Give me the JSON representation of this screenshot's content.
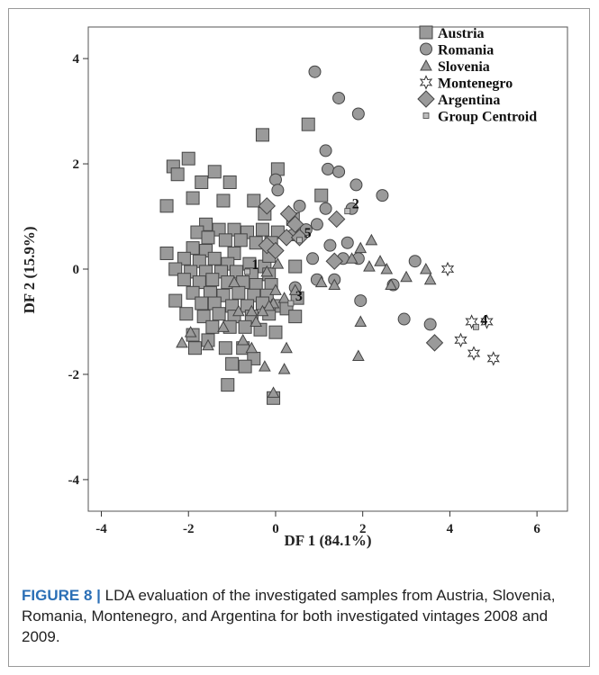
{
  "chart_data": {
    "type": "scatter",
    "title": "",
    "xlabel": "DF 1 (84.1%)",
    "ylabel": "DF 2 (15.9%)",
    "xlim": [
      -4.3,
      6.7
    ],
    "ylim": [
      -4.6,
      4.6
    ],
    "xticks": [
      -4,
      -2,
      0,
      2,
      4,
      6
    ],
    "yticks": [
      -4,
      -2,
      0,
      2,
      4
    ],
    "grid": false,
    "legend_position": "top-right",
    "colors": {
      "fill": "#9a9a9a",
      "stroke": "#444444"
    },
    "series": [
      {
        "name": "Austria",
        "marker": "square",
        "points": [
          [
            -0.3,
            2.55
          ],
          [
            0.05,
            1.9
          ],
          [
            0.75,
            2.75
          ],
          [
            -2.0,
            2.1
          ],
          [
            -2.35,
            1.95
          ],
          [
            -1.4,
            1.85
          ],
          [
            -2.25,
            1.8
          ],
          [
            -1.7,
            1.65
          ],
          [
            -1.05,
            1.65
          ],
          [
            -0.5,
            1.3
          ],
          [
            -1.9,
            1.35
          ],
          [
            -1.2,
            1.3
          ],
          [
            -0.25,
            1.05
          ],
          [
            1.05,
            1.4
          ],
          [
            -2.5,
            1.2
          ],
          [
            0.4,
            0.95
          ],
          [
            -1.6,
            0.85
          ],
          [
            -1.3,
            0.75
          ],
          [
            -0.95,
            0.75
          ],
          [
            -0.65,
            0.7
          ],
          [
            -0.3,
            0.75
          ],
          [
            0.05,
            0.7
          ],
          [
            -1.8,
            0.7
          ],
          [
            -1.55,
            0.6
          ],
          [
            -1.15,
            0.55
          ],
          [
            -0.8,
            0.55
          ],
          [
            -0.45,
            0.5
          ],
          [
            -0.1,
            0.5
          ],
          [
            -1.9,
            0.4
          ],
          [
            -1.6,
            0.35
          ],
          [
            -0.95,
            0.3
          ],
          [
            -2.5,
            0.3
          ],
          [
            -2.1,
            0.2
          ],
          [
            -1.75,
            0.15
          ],
          [
            -1.4,
            0.2
          ],
          [
            -1.1,
            0.1
          ],
          [
            -0.6,
            0.1
          ],
          [
            -0.25,
            0.05
          ],
          [
            -2.3,
            0.0
          ],
          [
            -1.95,
            -0.05
          ],
          [
            -1.6,
            -0.05
          ],
          [
            -1.25,
            -0.05
          ],
          [
            -0.9,
            -0.05
          ],
          [
            -0.55,
            -0.1
          ],
          [
            -0.15,
            -0.1
          ],
          [
            -2.1,
            -0.2
          ],
          [
            -1.75,
            -0.25
          ],
          [
            -1.45,
            -0.2
          ],
          [
            -1.1,
            -0.25
          ],
          [
            -0.75,
            -0.25
          ],
          [
            -0.45,
            -0.3
          ],
          [
            -0.1,
            -0.3
          ],
          [
            -1.9,
            -0.45
          ],
          [
            -1.5,
            -0.45
          ],
          [
            -1.2,
            -0.5
          ],
          [
            -0.85,
            -0.45
          ],
          [
            -0.5,
            -0.5
          ],
          [
            -0.2,
            -0.5
          ],
          [
            -2.3,
            -0.6
          ],
          [
            -1.7,
            -0.65
          ],
          [
            -1.4,
            -0.65
          ],
          [
            -1.0,
            -0.7
          ],
          [
            -0.65,
            -0.7
          ],
          [
            -0.3,
            -0.65
          ],
          [
            0.05,
            -0.7
          ],
          [
            -2.05,
            -0.85
          ],
          [
            -1.65,
            -0.9
          ],
          [
            -1.3,
            -0.85
          ],
          [
            -0.95,
            -0.9
          ],
          [
            -0.55,
            -0.9
          ],
          [
            -0.15,
            -0.85
          ],
          [
            0.25,
            -0.75
          ],
          [
            0.5,
            -0.55
          ],
          [
            -1.45,
            -1.1
          ],
          [
            -1.05,
            -1.1
          ],
          [
            -0.7,
            -1.1
          ],
          [
            -0.35,
            -1.15
          ],
          [
            0.0,
            -1.2
          ],
          [
            -1.9,
            -1.25
          ],
          [
            -1.55,
            -1.35
          ],
          [
            -1.85,
            -1.5
          ],
          [
            -1.15,
            -1.5
          ],
          [
            -0.75,
            -1.5
          ],
          [
            -0.5,
            -1.7
          ],
          [
            -1.0,
            -1.8
          ],
          [
            -0.7,
            -1.85
          ],
          [
            -1.1,
            -2.2
          ],
          [
            -0.05,
            -2.45
          ],
          [
            0.45,
            -0.9
          ],
          [
            -0.15,
            0.25
          ],
          [
            0.45,
            0.05
          ]
        ]
      },
      {
        "name": "Romania",
        "marker": "circle",
        "points": [
          [
            0.9,
            3.75
          ],
          [
            1.45,
            3.25
          ],
          [
            1.9,
            2.95
          ],
          [
            1.15,
            2.25
          ],
          [
            1.2,
            1.9
          ],
          [
            1.45,
            1.85
          ],
          [
            1.85,
            1.6
          ],
          [
            2.45,
            1.4
          ],
          [
            0.0,
            1.7
          ],
          [
            0.05,
            1.5
          ],
          [
            0.55,
            1.2
          ],
          [
            1.15,
            1.15
          ],
          [
            1.75,
            1.15
          ],
          [
            0.95,
            0.85
          ],
          [
            0.7,
            0.75
          ],
          [
            1.65,
            0.5
          ],
          [
            1.25,
            0.45
          ],
          [
            0.85,
            0.2
          ],
          [
            1.55,
            0.2
          ],
          [
            1.9,
            0.2
          ],
          [
            3.2,
            0.15
          ],
          [
            0.95,
            -0.2
          ],
          [
            1.35,
            -0.2
          ],
          [
            1.95,
            -0.6
          ],
          [
            2.7,
            -0.3
          ],
          [
            2.95,
            -0.95
          ],
          [
            3.55,
            -1.05
          ],
          [
            0.45,
            -0.35
          ],
          [
            0.4,
            0.65
          ]
        ]
      },
      {
        "name": "Slovenia",
        "marker": "triangle",
        "points": [
          [
            2.2,
            0.55
          ],
          [
            1.95,
            0.4
          ],
          [
            1.75,
            0.2
          ],
          [
            2.4,
            0.15
          ],
          [
            2.55,
            0.0
          ],
          [
            2.65,
            -0.3
          ],
          [
            3.45,
            0.0
          ],
          [
            3.55,
            -0.2
          ],
          [
            3.0,
            -0.15
          ],
          [
            2.15,
            0.05
          ],
          [
            1.05,
            -0.25
          ],
          [
            1.35,
            -0.3
          ],
          [
            1.95,
            -1.0
          ],
          [
            1.9,
            -1.65
          ],
          [
            0.45,
            -0.4
          ],
          [
            0.0,
            -0.4
          ],
          [
            -0.05,
            -0.65
          ],
          [
            -0.15,
            -0.7
          ],
          [
            -0.3,
            -0.8
          ],
          [
            -0.45,
            -1.0
          ],
          [
            -0.55,
            -0.8
          ],
          [
            -0.85,
            -0.8
          ],
          [
            -1.2,
            -1.1
          ],
          [
            -1.55,
            -1.45
          ],
          [
            -2.15,
            -1.4
          ],
          [
            -1.95,
            -1.2
          ],
          [
            -0.75,
            -1.35
          ],
          [
            -0.55,
            -1.5
          ],
          [
            -0.25,
            -1.85
          ],
          [
            0.25,
            -1.5
          ],
          [
            0.2,
            -1.9
          ],
          [
            -0.05,
            -2.35
          ],
          [
            -0.95,
            -0.25
          ],
          [
            0.05,
            0.1
          ],
          [
            -0.2,
            -0.05
          ],
          [
            0.2,
            -0.55
          ]
        ]
      },
      {
        "name": "Montenegro",
        "marker": "star",
        "points": [
          [
            3.95,
            0.0
          ],
          [
            4.5,
            -1.0
          ],
          [
            4.85,
            -1.0
          ],
          [
            4.25,
            -1.35
          ],
          [
            4.55,
            -1.6
          ],
          [
            5.0,
            -1.7
          ]
        ]
      },
      {
        "name": "Argentina",
        "marker": "diamond",
        "points": [
          [
            -0.2,
            1.2
          ],
          [
            0.3,
            1.05
          ],
          [
            0.45,
            0.85
          ],
          [
            1.4,
            0.95
          ],
          [
            0.25,
            0.6
          ],
          [
            0.55,
            0.6
          ],
          [
            -0.2,
            0.45
          ],
          [
            0.0,
            0.35
          ],
          [
            1.35,
            0.15
          ],
          [
            3.65,
            -1.4
          ]
        ]
      },
      {
        "name": "Group Centroid",
        "marker": "small-square",
        "points": [
          [
            -0.65,
            -0.05
          ],
          [
            1.65,
            1.1
          ],
          [
            0.35,
            -0.65
          ],
          [
            4.6,
            -1.1
          ],
          [
            0.55,
            0.55
          ]
        ],
        "labels": [
          "1",
          "2",
          "3",
          "4",
          "5"
        ]
      }
    ]
  },
  "caption": {
    "label": "FIGURE 8 |",
    "text": " LDA evaluation of the investigated samples from Austria, Slovenia, Romania, Montenegro, and Argentina for both investigated vintages 2008 and 2009."
  }
}
